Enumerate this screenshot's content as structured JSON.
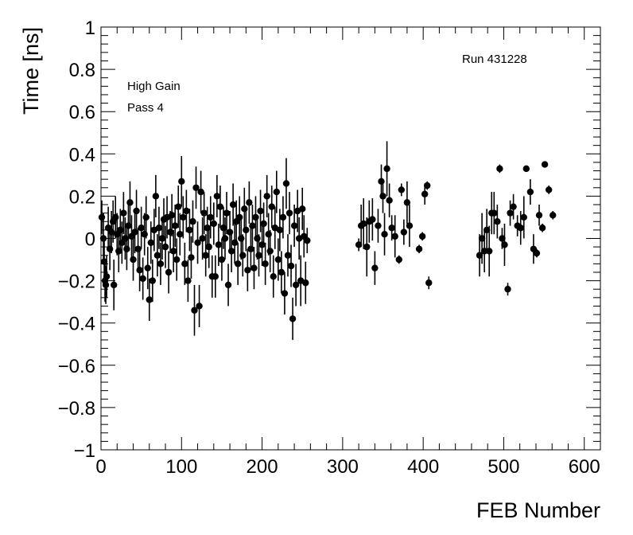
{
  "chart_data": {
    "type": "scatter",
    "title": "",
    "xlabel": "FEB Number",
    "ylabel": "Time [ns]",
    "xlim": [
      0,
      620
    ],
    "ylim": [
      -1,
      1
    ],
    "x_ticks": [
      "0",
      "100",
      "200",
      "300",
      "400",
      "500",
      "600"
    ],
    "y_ticks": [
      "−1",
      "−0.8",
      "−0.6",
      "−0.4",
      "−0.2",
      "0",
      "0.2",
      "0.4",
      "0.6",
      "0.8",
      "1"
    ],
    "x_tick_values": [
      0,
      100,
      200,
      300,
      400,
      500,
      600
    ],
    "y_tick_values": [
      -1,
      -0.8,
      -0.6,
      -0.4,
      -0.2,
      0,
      0.2,
      0.4,
      0.6,
      0.8,
      1
    ],
    "grid": false,
    "annotations": {
      "run": "Run 431228",
      "gain": "High Gain",
      "pass": "Pass 4"
    },
    "series": [
      {
        "marker_color": "#000000",
        "points": [
          {
            "x": 1,
            "y": 0.1,
            "err": 0.08
          },
          {
            "x": 3,
            "y": 0.0,
            "err": 0.12
          },
          {
            "x": 4,
            "y": -0.11,
            "err": 0.1
          },
          {
            "x": 5,
            "y": -0.2,
            "err": 0.1
          },
          {
            "x": 6,
            "y": -0.22,
            "err": 0.09
          },
          {
            "x": 7,
            "y": -0.18,
            "err": 0.1
          },
          {
            "x": 9,
            "y": 0.05,
            "err": 0.1
          },
          {
            "x": 11,
            "y": -0.05,
            "err": 0.1
          },
          {
            "x": 13,
            "y": 0.03,
            "err": 0.1
          },
          {
            "x": 15,
            "y": 0.08,
            "err": 0.1
          },
          {
            "x": 16,
            "y": -0.22,
            "err": 0.12
          },
          {
            "x": 18,
            "y": 0.1,
            "err": 0.1
          },
          {
            "x": 20,
            "y": 0.02,
            "err": 0.1
          },
          {
            "x": 22,
            "y": -0.06,
            "err": 0.1
          },
          {
            "x": 24,
            "y": 0.04,
            "err": 0.1
          },
          {
            "x": 26,
            "y": -0.02,
            "err": 0.1
          },
          {
            "x": 28,
            "y": 0.12,
            "err": 0.1
          },
          {
            "x": 30,
            "y": 0.0,
            "err": 0.1
          },
          {
            "x": 32,
            "y": -0.05,
            "err": 0.1
          },
          {
            "x": 34,
            "y": 0.06,
            "err": 0.1
          },
          {
            "x": 36,
            "y": 0.17,
            "err": 0.1
          },
          {
            "x": 38,
            "y": 0.01,
            "err": 0.1
          },
          {
            "x": 40,
            "y": -0.1,
            "err": 0.1
          },
          {
            "x": 42,
            "y": 0.03,
            "err": 0.1
          },
          {
            "x": 44,
            "y": 0.13,
            "err": 0.1
          },
          {
            "x": 46,
            "y": -0.05,
            "err": 0.1
          },
          {
            "x": 48,
            "y": -0.15,
            "err": 0.1
          },
          {
            "x": 50,
            "y": 0.05,
            "err": 0.1
          },
          {
            "x": 52,
            "y": -0.19,
            "err": 0.1
          },
          {
            "x": 54,
            "y": 0.02,
            "err": 0.1
          },
          {
            "x": 56,
            "y": 0.1,
            "err": 0.1
          },
          {
            "x": 58,
            "y": -0.14,
            "err": 0.1
          },
          {
            "x": 60,
            "y": -0.29,
            "err": 0.1
          },
          {
            "x": 62,
            "y": -0.02,
            "err": 0.1
          },
          {
            "x": 64,
            "y": -0.2,
            "err": 0.1
          },
          {
            "x": 66,
            "y": 0.04,
            "err": 0.1
          },
          {
            "x": 68,
            "y": 0.2,
            "err": 0.1
          },
          {
            "x": 70,
            "y": -0.08,
            "err": 0.1
          },
          {
            "x": 72,
            "y": 0.05,
            "err": 0.1
          },
          {
            "x": 74,
            "y": -0.12,
            "err": 0.1
          },
          {
            "x": 76,
            "y": 0.0,
            "err": 0.1
          },
          {
            "x": 78,
            "y": 0.09,
            "err": 0.1
          },
          {
            "x": 80,
            "y": -0.04,
            "err": 0.1
          },
          {
            "x": 82,
            "y": 0.1,
            "err": 0.1
          },
          {
            "x": 84,
            "y": -0.16,
            "err": 0.1
          },
          {
            "x": 86,
            "y": 0.03,
            "err": 0.1
          },
          {
            "x": 88,
            "y": 0.11,
            "err": 0.1
          },
          {
            "x": 90,
            "y": -0.06,
            "err": 0.1
          },
          {
            "x": 92,
            "y": 0.06,
            "err": 0.1
          },
          {
            "x": 94,
            "y": -0.1,
            "err": 0.1
          },
          {
            "x": 96,
            "y": 0.15,
            "err": 0.1
          },
          {
            "x": 98,
            "y": 0.02,
            "err": 0.1
          },
          {
            "x": 100,
            "y": 0.27,
            "err": 0.12
          },
          {
            "x": 102,
            "y": 0.1,
            "err": 0.1
          },
          {
            "x": 104,
            "y": -0.12,
            "err": 0.1
          },
          {
            "x": 106,
            "y": 0.13,
            "err": 0.1
          },
          {
            "x": 108,
            "y": -0.2,
            "err": 0.1
          },
          {
            "x": 110,
            "y": 0.04,
            "err": 0.1
          },
          {
            "x": 112,
            "y": -0.09,
            "err": 0.1
          },
          {
            "x": 114,
            "y": 0.08,
            "err": 0.1
          },
          {
            "x": 116,
            "y": -0.34,
            "err": 0.12
          },
          {
            "x": 118,
            "y": 0.24,
            "err": 0.1
          },
          {
            "x": 120,
            "y": -0.02,
            "err": 0.1
          },
          {
            "x": 122,
            "y": -0.32,
            "err": 0.1
          },
          {
            "x": 124,
            "y": 0.22,
            "err": 0.1
          },
          {
            "x": 126,
            "y": 0.0,
            "err": 0.1
          },
          {
            "x": 128,
            "y": 0.12,
            "err": 0.1
          },
          {
            "x": 130,
            "y": -0.08,
            "err": 0.1
          },
          {
            "x": 132,
            "y": 0.05,
            "err": 0.1
          },
          {
            "x": 134,
            "y": -0.04,
            "err": 0.1
          },
          {
            "x": 136,
            "y": 0.1,
            "err": 0.1
          },
          {
            "x": 138,
            "y": -0.18,
            "err": 0.1
          },
          {
            "x": 140,
            "y": 0.07,
            "err": 0.1
          },
          {
            "x": 142,
            "y": -0.18,
            "err": 0.1
          },
          {
            "x": 144,
            "y": 0.2,
            "err": 0.1
          },
          {
            "x": 146,
            "y": -0.03,
            "err": 0.1
          },
          {
            "x": 148,
            "y": 0.15,
            "err": 0.1
          },
          {
            "x": 150,
            "y": -0.1,
            "err": 0.1
          },
          {
            "x": 152,
            "y": 0.05,
            "err": 0.1
          },
          {
            "x": 154,
            "y": 0.0,
            "err": 0.1
          },
          {
            "x": 156,
            "y": 0.12,
            "err": 0.1
          },
          {
            "x": 158,
            "y": -0.22,
            "err": 0.1
          },
          {
            "x": 160,
            "y": 0.03,
            "err": 0.1
          },
          {
            "x": 162,
            "y": -0.06,
            "err": 0.1
          },
          {
            "x": 164,
            "y": 0.16,
            "err": 0.1
          },
          {
            "x": 166,
            "y": -0.02,
            "err": 0.1
          },
          {
            "x": 168,
            "y": 0.08,
            "err": 0.1
          },
          {
            "x": 170,
            "y": -0.12,
            "err": 0.1
          },
          {
            "x": 172,
            "y": 0.1,
            "err": 0.1
          },
          {
            "x": 174,
            "y": 0.0,
            "err": 0.1
          },
          {
            "x": 176,
            "y": -0.08,
            "err": 0.1
          },
          {
            "x": 178,
            "y": 0.14,
            "err": 0.1
          },
          {
            "x": 180,
            "y": 0.04,
            "err": 0.1
          },
          {
            "x": 182,
            "y": -0.15,
            "err": 0.1
          },
          {
            "x": 184,
            "y": 0.17,
            "err": 0.1
          },
          {
            "x": 186,
            "y": -0.05,
            "err": 0.1
          },
          {
            "x": 188,
            "y": 0.06,
            "err": 0.1
          },
          {
            "x": 190,
            "y": -0.14,
            "err": 0.1
          },
          {
            "x": 192,
            "y": 0.1,
            "err": 0.1
          },
          {
            "x": 194,
            "y": 0.0,
            "err": 0.1
          },
          {
            "x": 196,
            "y": -0.08,
            "err": 0.1
          },
          {
            "x": 198,
            "y": 0.13,
            "err": 0.1
          },
          {
            "x": 200,
            "y": -0.03,
            "err": 0.1
          },
          {
            "x": 202,
            "y": 0.07,
            "err": 0.1
          },
          {
            "x": 204,
            "y": -0.12,
            "err": 0.1
          },
          {
            "x": 206,
            "y": 0.2,
            "err": 0.1
          },
          {
            "x": 208,
            "y": 0.02,
            "err": 0.1
          },
          {
            "x": 210,
            "y": -0.06,
            "err": 0.1
          },
          {
            "x": 212,
            "y": 0.15,
            "err": 0.1
          },
          {
            "x": 214,
            "y": -0.18,
            "err": 0.1
          },
          {
            "x": 216,
            "y": 0.05,
            "err": 0.1
          },
          {
            "x": 218,
            "y": 0.22,
            "err": 0.1
          },
          {
            "x": 220,
            "y": -0.1,
            "err": 0.1
          },
          {
            "x": 222,
            "y": 0.04,
            "err": 0.1
          },
          {
            "x": 224,
            "y": -0.16,
            "err": 0.1
          },
          {
            "x": 226,
            "y": 0.1,
            "err": 0.1
          },
          {
            "x": 228,
            "y": -0.26,
            "err": 0.1
          },
          {
            "x": 230,
            "y": 0.26,
            "err": 0.12
          },
          {
            "x": 232,
            "y": -0.08,
            "err": 0.1
          },
          {
            "x": 234,
            "y": 0.12,
            "err": 0.1
          },
          {
            "x": 236,
            "y": -0.13,
            "err": 0.1
          },
          {
            "x": 238,
            "y": -0.38,
            "err": 0.1
          },
          {
            "x": 240,
            "y": 0.06,
            "err": 0.1
          },
          {
            "x": 242,
            "y": -0.22,
            "err": 0.1
          },
          {
            "x": 244,
            "y": 0.13,
            "err": 0.1
          },
          {
            "x": 246,
            "y": 0.0,
            "err": 0.1
          },
          {
            "x": 248,
            "y": -0.2,
            "err": 0.12
          },
          {
            "x": 250,
            "y": 0.14,
            "err": 0.1
          },
          {
            "x": 252,
            "y": 0.01,
            "err": 0.1
          },
          {
            "x": 254,
            "y": -0.21,
            "err": 0.1
          },
          {
            "x": 256,
            "y": -0.01,
            "err": 0.06
          },
          {
            "x": 320,
            "y": -0.03,
            "err": 0.03
          },
          {
            "x": 323,
            "y": 0.06,
            "err": 0.1
          },
          {
            "x": 326,
            "y": 0.07,
            "err": 0.12
          },
          {
            "x": 330,
            "y": -0.04,
            "err": 0.14
          },
          {
            "x": 333,
            "y": 0.08,
            "err": 0.1
          },
          {
            "x": 337,
            "y": 0.09,
            "err": 0.1
          },
          {
            "x": 340,
            "y": -0.14,
            "err": 0.08
          },
          {
            "x": 344,
            "y": 0.06,
            "err": 0.08
          },
          {
            "x": 348,
            "y": 0.27,
            "err": 0.08
          },
          {
            "x": 350,
            "y": 0.2,
            "err": 0.08
          },
          {
            "x": 352,
            "y": 0.02,
            "err": 0.1
          },
          {
            "x": 355,
            "y": 0.33,
            "err": 0.13
          },
          {
            "x": 358,
            "y": 0.18,
            "err": 0.08
          },
          {
            "x": 361,
            "y": 0.05,
            "err": 0.06
          },
          {
            "x": 365,
            "y": 0.01,
            "err": 0.1
          },
          {
            "x": 370,
            "y": -0.1,
            "err": 0.02
          },
          {
            "x": 373,
            "y": 0.23,
            "err": 0.03
          },
          {
            "x": 376,
            "y": 0.03,
            "err": 0.06
          },
          {
            "x": 380,
            "y": 0.17,
            "err": 0.1
          },
          {
            "x": 383,
            "y": 0.06,
            "err": 0.1
          },
          {
            "x": 395,
            "y": -0.05,
            "err": 0.02
          },
          {
            "x": 399,
            "y": 0.01,
            "err": 0.02
          },
          {
            "x": 402,
            "y": 0.21,
            "err": 0.05
          },
          {
            "x": 405,
            "y": 0.25,
            "err": 0.02
          },
          {
            "x": 407,
            "y": -0.21,
            "err": 0.03
          },
          {
            "x": 470,
            "y": -0.08,
            "err": 0.1
          },
          {
            "x": 473,
            "y": 0.0,
            "err": 0.12
          },
          {
            "x": 476,
            "y": -0.06,
            "err": 0.1
          },
          {
            "x": 479,
            "y": 0.04,
            "err": 0.1
          },
          {
            "x": 482,
            "y": -0.06,
            "err": 0.12
          },
          {
            "x": 485,
            "y": 0.12,
            "err": 0.1
          },
          {
            "x": 488,
            "y": 0.12,
            "err": 0.1
          },
          {
            "x": 492,
            "y": 0.08,
            "err": 0.08
          },
          {
            "x": 495,
            "y": 0.33,
            "err": 0.02
          },
          {
            "x": 498,
            "y": 0.0,
            "err": 0.05
          },
          {
            "x": 501,
            "y": -0.03,
            "err": 0.1
          },
          {
            "x": 505,
            "y": -0.24,
            "err": 0.03
          },
          {
            "x": 508,
            "y": 0.12,
            "err": 0.06
          },
          {
            "x": 512,
            "y": 0.15,
            "err": 0.06
          },
          {
            "x": 517,
            "y": 0.06,
            "err": 0.05
          },
          {
            "x": 521,
            "y": 0.05,
            "err": 0.08
          },
          {
            "x": 525,
            "y": 0.1,
            "err": 0.1
          },
          {
            "x": 528,
            "y": 0.33,
            "err": 0.01
          },
          {
            "x": 533,
            "y": 0.22,
            "err": 0.06
          },
          {
            "x": 537,
            "y": -0.05,
            "err": 0.07
          },
          {
            "x": 541,
            "y": -0.07,
            "err": 0.02
          },
          {
            "x": 544,
            "y": 0.11,
            "err": 0.05
          },
          {
            "x": 548,
            "y": 0.05,
            "err": 0.02
          },
          {
            "x": 551,
            "y": 0.35,
            "err": 0.01
          },
          {
            "x": 556,
            "y": 0.23,
            "err": 0.02
          },
          {
            "x": 561,
            "y": 0.11,
            "err": 0.02
          }
        ]
      }
    ]
  }
}
